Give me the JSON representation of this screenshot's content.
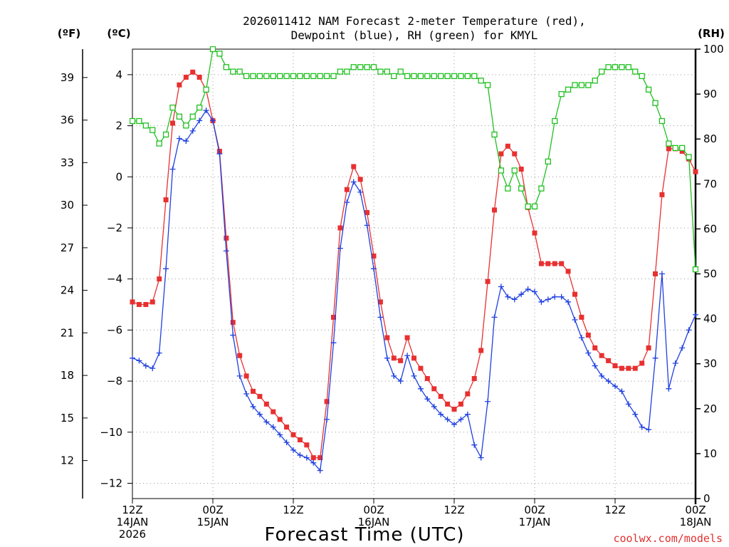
{
  "chart_data": {
    "type": "line",
    "title_line1": "2026011412 NAM Forecast 2-meter Temperature (red),",
    "title_line2": "Dewpoint (blue), RH (green) for KMYL",
    "unit_f": "(ºF)",
    "unit_c": "(ºC)",
    "unit_rh": "(RH)",
    "xlabel": "Forecast Time (UTC)",
    "credit": "coolwx.com/models",
    "x_hours": [
      0,
      1,
      2,
      3,
      4,
      5,
      6,
      7,
      8,
      9,
      10,
      11,
      12,
      13,
      14,
      15,
      16,
      17,
      18,
      19,
      20,
      21,
      22,
      23,
      24,
      25,
      26,
      27,
      28,
      29,
      30,
      31,
      32,
      33,
      34,
      35,
      36,
      37,
      38,
      39,
      40,
      41,
      42,
      43,
      44,
      45,
      46,
      47,
      48,
      49,
      50,
      51,
      52,
      53,
      54,
      55,
      56,
      57,
      58,
      59,
      60,
      61,
      62,
      63,
      64,
      65,
      66,
      67,
      68,
      69,
      70,
      71,
      72,
      73,
      74,
      75,
      76,
      77,
      78,
      79,
      80,
      81,
      82,
      83,
      84
    ],
    "xlim": [
      0,
      84
    ],
    "ylim_c": [
      -12.6,
      5.0
    ],
    "ylim_rh": [
      0,
      100
    ],
    "x_ticks": [
      {
        "hour": 0,
        "l1": "12Z",
        "l2": "14JAN",
        "l3": "2026"
      },
      {
        "hour": 12,
        "l1": "00Z",
        "l2": "15JAN",
        "l3": ""
      },
      {
        "hour": 24,
        "l1": "12Z",
        "l2": "",
        "l3": ""
      },
      {
        "hour": 36,
        "l1": "00Z",
        "l2": "16JAN",
        "l3": ""
      },
      {
        "hour": 48,
        "l1": "12Z",
        "l2": "",
        "l3": ""
      },
      {
        "hour": 60,
        "l1": "00Z",
        "l2": "17JAN",
        "l3": ""
      },
      {
        "hour": 72,
        "l1": "12Z",
        "l2": "",
        "l3": ""
      },
      {
        "hour": 84,
        "l1": "00Z",
        "l2": "18JAN",
        "l3": ""
      }
    ],
    "y_ticks_c": [
      4,
      2,
      0,
      -2,
      -4,
      -6,
      -8,
      -10,
      -12
    ],
    "y_tick_labels_c": [
      "4",
      "2",
      "0",
      "−2",
      "−4",
      "−6",
      "−8",
      "−10",
      "−12"
    ],
    "y_ticks_f": [
      39,
      36,
      33,
      30,
      27,
      24,
      21,
      18,
      15,
      12
    ],
    "y_ticks_rh": [
      100,
      90,
      80,
      70,
      60,
      50,
      40,
      30,
      20,
      10,
      0
    ],
    "series": [
      {
        "name": "Temperature",
        "units": "C",
        "color": "#e83030",
        "marker": "filled-square",
        "values": [
          -4.9,
          -5.0,
          -5.0,
          -4.9,
          -4.0,
          -0.9,
          2.1,
          3.6,
          3.9,
          4.1,
          3.9,
          3.4,
          2.2,
          1.0,
          -2.4,
          -5.7,
          -7.0,
          -7.8,
          -8.4,
          -8.6,
          -8.9,
          -9.2,
          -9.5,
          -9.8,
          -10.1,
          -10.3,
          -10.5,
          -11.0,
          -11.0,
          -8.8,
          -5.5,
          -2.0,
          -0.5,
          0.4,
          -0.1,
          -1.4,
          -3.1,
          -4.9,
          -6.3,
          -7.1,
          -7.2,
          -6.3,
          -7.1,
          -7.5,
          -7.9,
          -8.3,
          -8.6,
          -8.9,
          -9.1,
          -8.9,
          -8.5,
          -7.9,
          -6.8,
          -4.1,
          -1.3,
          0.9,
          1.2,
          0.9,
          0.3,
          -1.2,
          -2.2,
          -3.4,
          -3.4,
          -3.4,
          -3.4,
          -3.7,
          -4.6,
          -5.5,
          -6.2,
          -6.7,
          -7.0,
          -7.2,
          -7.4,
          -7.5,
          -7.5,
          -7.5,
          -7.3,
          -6.7,
          -3.8,
          -0.7,
          1.1,
          1.1,
          1.0,
          0.7,
          0.2
        ]
      },
      {
        "name": "Dewpoint",
        "units": "C",
        "color": "#2040e0",
        "marker": "plus",
        "values": [
          -7.1,
          -7.2,
          -7.4,
          -7.5,
          -6.9,
          -3.6,
          0.3,
          1.5,
          1.4,
          1.8,
          2.2,
          2.6,
          2.2,
          0.9,
          -2.9,
          -6.2,
          -7.8,
          -8.5,
          -9.0,
          -9.3,
          -9.6,
          -9.8,
          -10.1,
          -10.4,
          -10.7,
          -10.9,
          -11.0,
          -11.2,
          -11.5,
          -9.5,
          -6.5,
          -2.8,
          -1.0,
          -0.2,
          -0.6,
          -1.9,
          -3.6,
          -5.5,
          -7.1,
          -7.8,
          -8.0,
          -7.0,
          -7.8,
          -8.3,
          -8.7,
          -9.0,
          -9.3,
          -9.5,
          -9.7,
          -9.5,
          -9.3,
          -10.5,
          -11.0,
          -8.8,
          -5.5,
          -4.3,
          -4.7,
          -4.8,
          -4.6,
          -4.4,
          -4.5,
          -4.9,
          -4.8,
          -4.7,
          -4.7,
          -4.9,
          -5.6,
          -6.3,
          -6.9,
          -7.4,
          -7.8,
          -8.0,
          -8.2,
          -8.4,
          -8.9,
          -9.3,
          -9.8,
          -9.9,
          -7.1,
          -3.8,
          -8.3,
          -7.3,
          -6.7,
          -6.0,
          -5.4
        ]
      },
      {
        "name": "RH",
        "units": "%",
        "color": "#20c020",
        "marker": "open-square",
        "values": [
          84,
          84,
          83,
          82,
          79,
          81,
          87,
          85,
          83,
          85,
          87,
          91,
          100,
          99,
          96,
          95,
          95,
          94,
          94,
          94,
          94,
          94,
          94,
          94,
          94,
          94,
          94,
          94,
          94,
          94,
          94,
          95,
          95,
          96,
          96,
          96,
          96,
          95,
          95,
          94,
          95,
          94,
          94,
          94,
          94,
          94,
          94,
          94,
          94,
          94,
          94,
          94,
          93,
          92,
          81,
          73,
          69,
          73,
          69,
          65,
          65,
          69,
          75,
          84,
          90,
          91,
          92,
          92,
          92,
          93,
          95,
          96,
          96,
          96,
          96,
          95,
          94,
          91,
          88,
          84,
          79,
          78,
          78,
          76,
          51
        ]
      }
    ]
  }
}
